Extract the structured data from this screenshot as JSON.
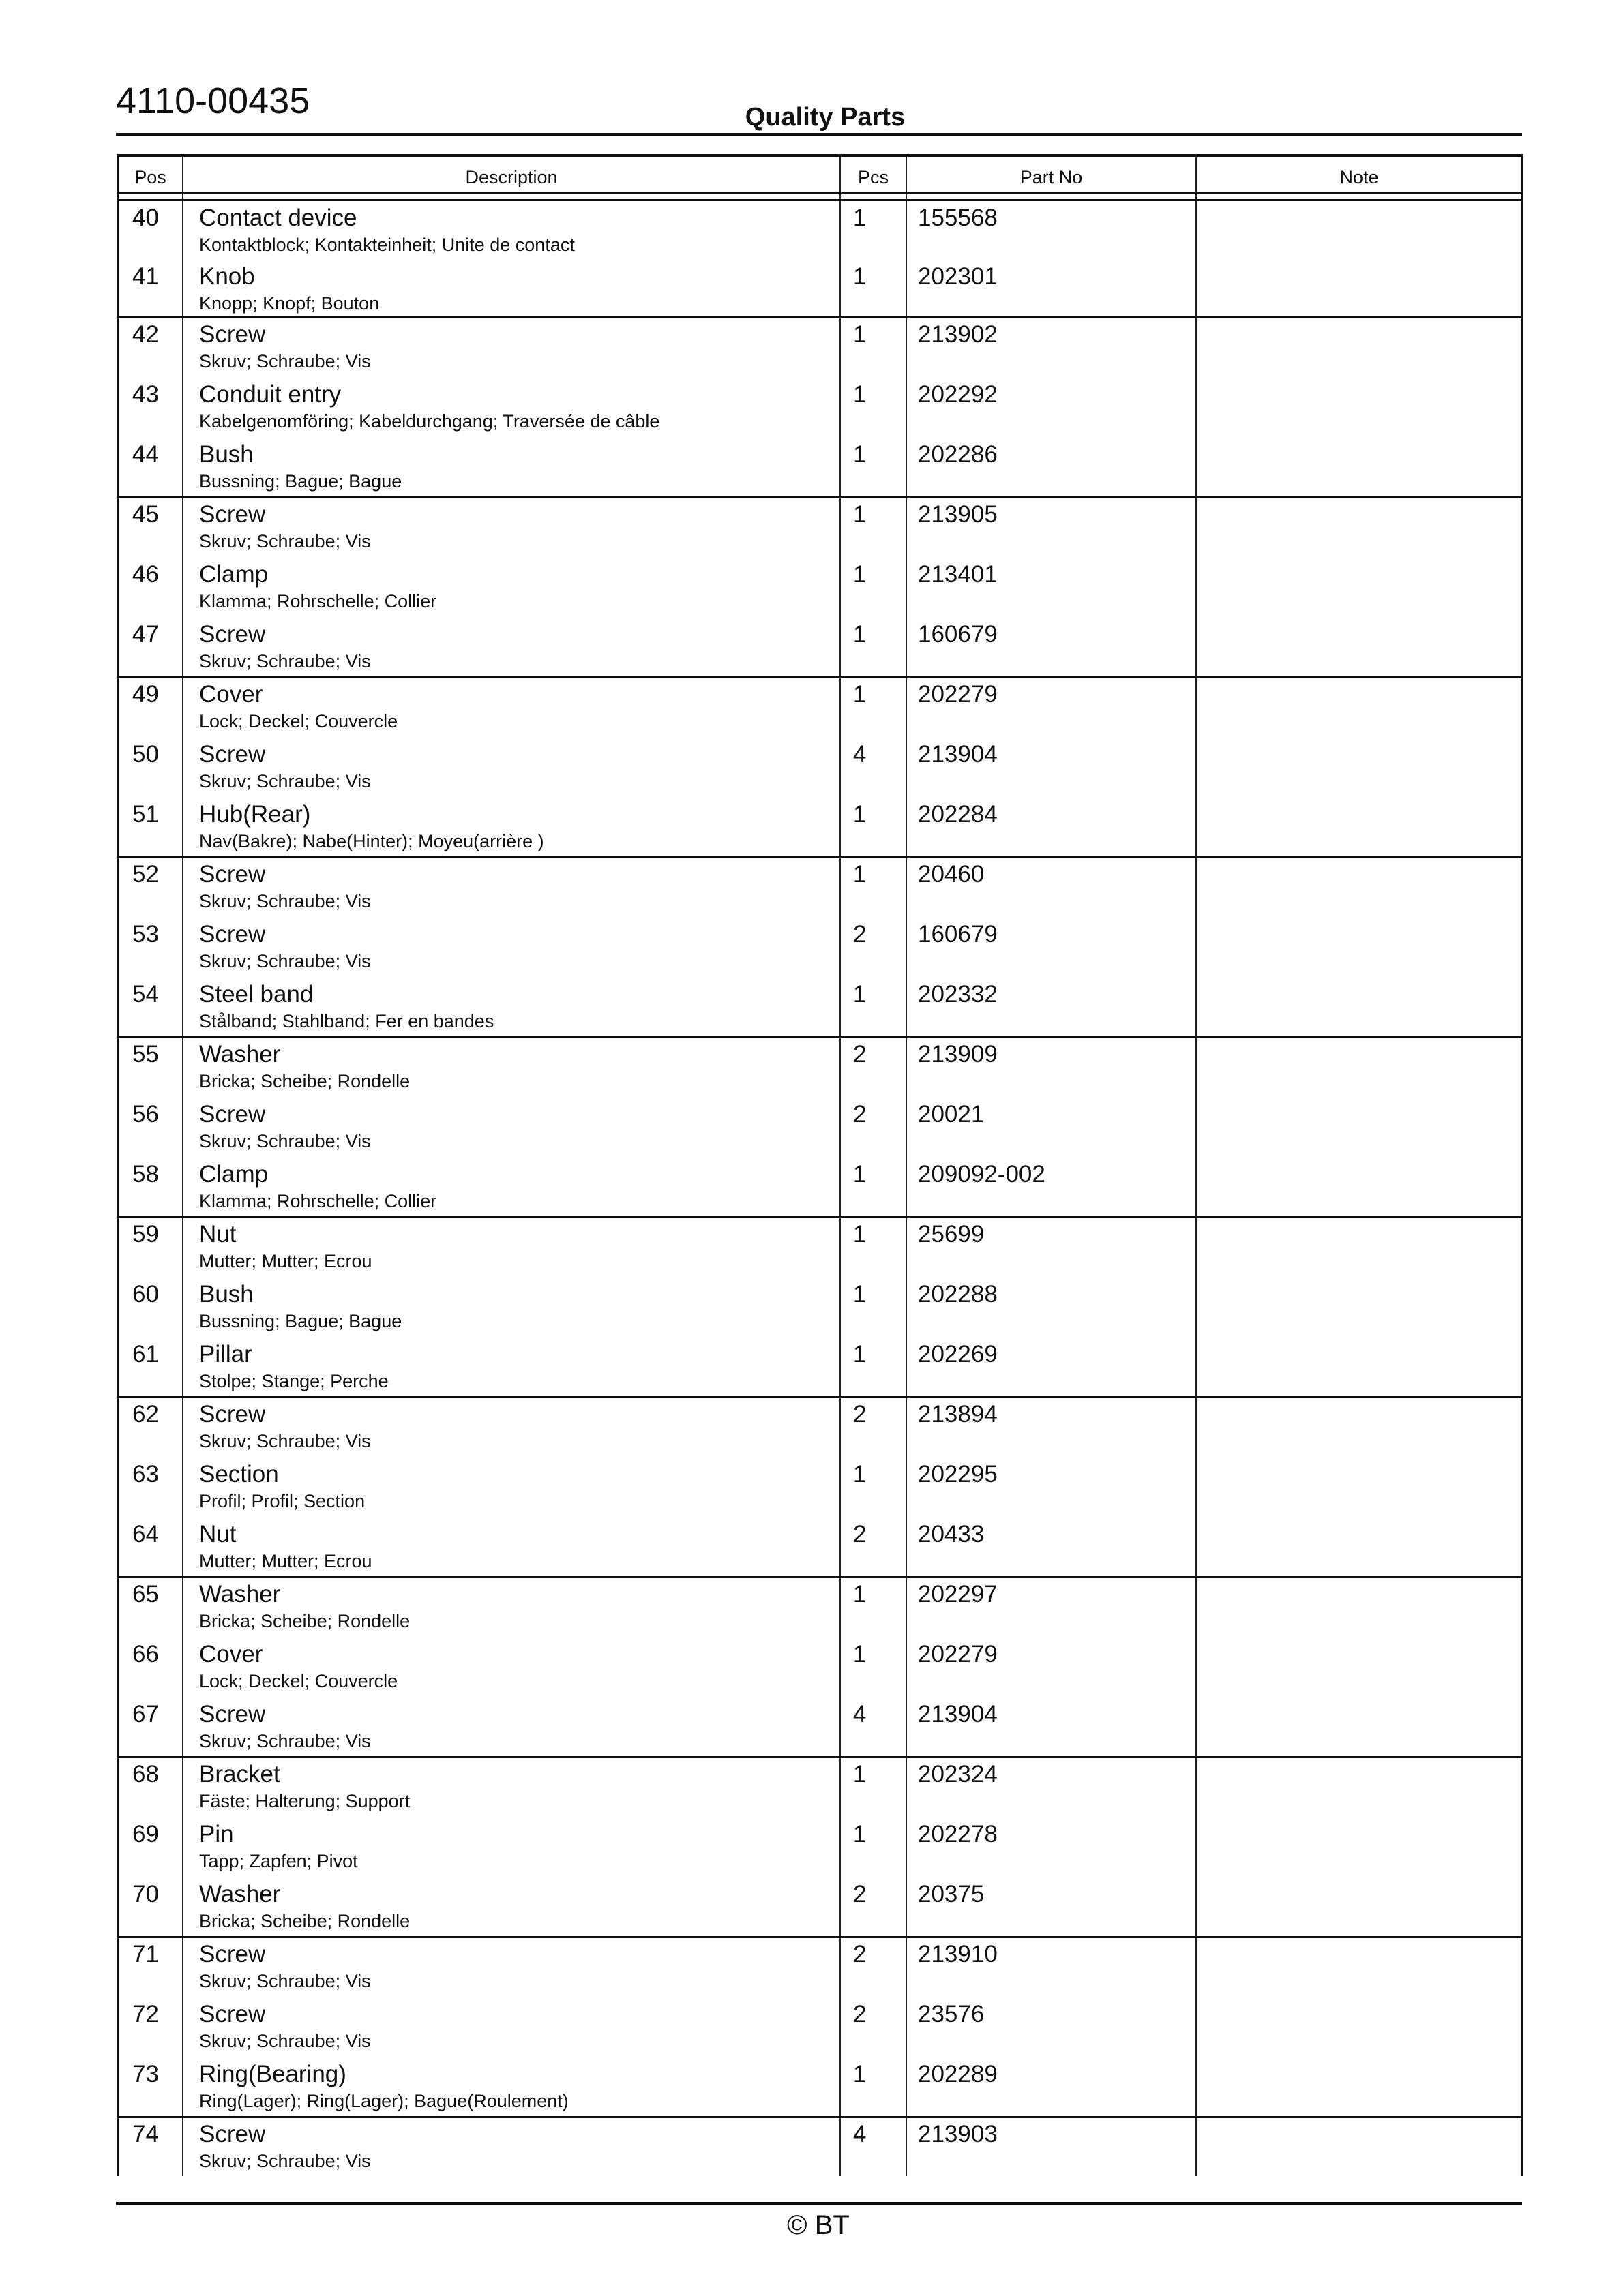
{
  "header": {
    "doc_number": "4110-00435",
    "title": "Quality Parts"
  },
  "table": {
    "columns": [
      "Pos",
      "Description",
      "Pcs",
      "Part No",
      "Note"
    ],
    "groups": [
      [
        {
          "pos": "40",
          "name": "Contact device",
          "sub": "Kontaktblock; Kontakteinheit; Unite de contact",
          "pcs": "1",
          "part": "155568"
        },
        {
          "pos": "41",
          "name": "Knob",
          "sub": "Knopp; Knopf; Bouton",
          "pcs": "1",
          "part": "202301"
        }
      ],
      [
        {
          "pos": "42",
          "name": "Screw",
          "sub": "Skruv; Schraube; Vis",
          "pcs": "1",
          "part": "213902"
        },
        {
          "pos": "43",
          "name": "Conduit entry",
          "sub": "Kabelgenomföring; Kabeldurchgang; Traversée de câble",
          "pcs": "1",
          "part": "202292"
        },
        {
          "pos": "44",
          "name": "Bush",
          "sub": "Bussning; Bague; Bague",
          "pcs": "1",
          "part": "202286"
        }
      ],
      [
        {
          "pos": "45",
          "name": "Screw",
          "sub": "Skruv; Schraube; Vis",
          "pcs": "1",
          "part": "213905"
        },
        {
          "pos": "46",
          "name": "Clamp",
          "sub": "Klamma; Rohrschelle; Collier",
          "pcs": "1",
          "part": "213401"
        },
        {
          "pos": "47",
          "name": "Screw",
          "sub": "Skruv; Schraube; Vis",
          "pcs": "1",
          "part": "160679"
        }
      ],
      [
        {
          "pos": "49",
          "name": "Cover",
          "sub": "Lock; Deckel; Couvercle",
          "pcs": "1",
          "part": "202279"
        },
        {
          "pos": "50",
          "name": "Screw",
          "sub": "Skruv; Schraube; Vis",
          "pcs": "4",
          "part": "213904"
        },
        {
          "pos": "51",
          "name": "Hub(Rear)",
          "sub": "Nav(Bakre); Nabe(Hinter); Moyeu(arrière )",
          "pcs": "1",
          "part": "202284"
        }
      ],
      [
        {
          "pos": "52",
          "name": "Screw",
          "sub": "Skruv; Schraube; Vis",
          "pcs": "1",
          "part": "20460"
        },
        {
          "pos": "53",
          "name": "Screw",
          "sub": "Skruv; Schraube; Vis",
          "pcs": "2",
          "part": "160679"
        },
        {
          "pos": "54",
          "name": "Steel band",
          "sub": "Stålband; Stahlband; Fer en bandes",
          "pcs": "1",
          "part": "202332"
        }
      ],
      [
        {
          "pos": "55",
          "name": "Washer",
          "sub": "Bricka; Scheibe; Rondelle",
          "pcs": "2",
          "part": "213909"
        },
        {
          "pos": "56",
          "name": "Screw",
          "sub": "Skruv; Schraube; Vis",
          "pcs": "2",
          "part": "20021"
        },
        {
          "pos": "58",
          "name": "Clamp",
          "sub": "Klamma; Rohrschelle; Collier",
          "pcs": "1",
          "part": "209092-002"
        }
      ],
      [
        {
          "pos": "59",
          "name": "Nut",
          "sub": "Mutter; Mutter; Ecrou",
          "pcs": "1",
          "part": "25699"
        },
        {
          "pos": "60",
          "name": "Bush",
          "sub": "Bussning; Bague; Bague",
          "pcs": "1",
          "part": "202288"
        },
        {
          "pos": "61",
          "name": "Pillar",
          "sub": "Stolpe; Stange; Perche",
          "pcs": "1",
          "part": "202269"
        }
      ],
      [
        {
          "pos": "62",
          "name": "Screw",
          "sub": "Skruv; Schraube; Vis",
          "pcs": "2",
          "part": "213894"
        },
        {
          "pos": "63",
          "name": "Section",
          "sub": "Profil; Profil; Section",
          "pcs": "1",
          "part": "202295"
        },
        {
          "pos": "64",
          "name": "Nut",
          "sub": "Mutter; Mutter; Ecrou",
          "pcs": "2",
          "part": "20433"
        }
      ],
      [
        {
          "pos": "65",
          "name": "Washer",
          "sub": "Bricka; Scheibe; Rondelle",
          "pcs": "1",
          "part": "202297"
        },
        {
          "pos": "66",
          "name": "Cover",
          "sub": "Lock; Deckel; Couvercle",
          "pcs": "1",
          "part": "202279"
        },
        {
          "pos": "67",
          "name": "Screw",
          "sub": "Skruv; Schraube; Vis",
          "pcs": "4",
          "part": "213904"
        }
      ],
      [
        {
          "pos": "68",
          "name": "Bracket",
          "sub": "Fäste; Halterung; Support",
          "pcs": "1",
          "part": "202324"
        },
        {
          "pos": "69",
          "name": "Pin",
          "sub": "Tapp; Zapfen; Pivot",
          "pcs": "1",
          "part": "202278"
        },
        {
          "pos": "70",
          "name": "Washer",
          "sub": "Bricka; Scheibe; Rondelle",
          "pcs": "2",
          "part": "20375"
        }
      ],
      [
        {
          "pos": "71",
          "name": "Screw",
          "sub": "Skruv; Schraube; Vis",
          "pcs": "2",
          "part": "213910"
        },
        {
          "pos": "72",
          "name": "Screw",
          "sub": "Skruv; Schraube; Vis",
          "pcs": "2",
          "part": "23576"
        },
        {
          "pos": "73",
          "name": "Ring(Bearing)",
          "sub": "Ring(Lager); Ring(Lager); Bague(Roulement)",
          "pcs": "1",
          "part": "202289"
        }
      ],
      [
        {
          "pos": "74",
          "name": "Screw",
          "sub": "Skruv; Schraube; Vis",
          "pcs": "4",
          "part": "213903"
        }
      ]
    ]
  },
  "footer": {
    "copyright": "© BT"
  }
}
